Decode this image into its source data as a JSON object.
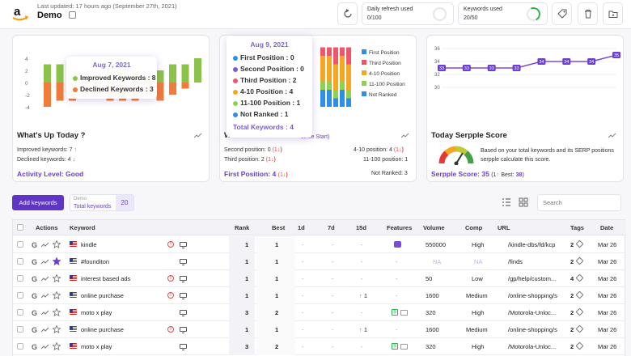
{
  "header": {
    "last_updated": "Last updated: 17 hours ago (September 27th, 2021)",
    "project_name": "Demo",
    "daily_refresh_label": "Daily refresh used",
    "daily_refresh_value": "0/100",
    "keywords_used_label": "Keywords used",
    "keywords_used_value": "20/50"
  },
  "card1": {
    "title": "What's Up Today ?",
    "improved_label": "Improved keywords:",
    "improved_value": "7",
    "declined_label": "Declined keywords:",
    "declined_value": "4",
    "activity_label": "Activity Level:",
    "activity_value": "Good",
    "tooltip": {
      "date": "Aug 7, 2021",
      "improved": "Improved Keywords : 8",
      "declined": "Declined Keywords : 3"
    },
    "y_ticks": [
      "4",
      "2",
      "0",
      "-2",
      "-4"
    ],
    "colors": {
      "improved": "#8bc34a",
      "declined": "#f07c3a"
    }
  },
  "card2": {
    "title": "W",
    "since_start": "since Start)",
    "second_label": "Second position:",
    "second_value": "0",
    "second_delta": "(1",
    "third_label": "Third position:",
    "third_value": "2",
    "third_delta": "(1",
    "p410_label": "4-10 position:",
    "p410_value": "4",
    "p410_delta": "(1",
    "p11100_label": "11-100 position:",
    "p11100_value": "1",
    "first_label": "First Position:",
    "first_value": "4",
    "first_delta": "(1",
    "not_ranked_label": "Not Ranked:",
    "not_ranked_value": "3",
    "legend": [
      "First Position",
      "Third Position",
      "4-10 Position",
      "11-100 Position",
      "Not Ranked"
    ],
    "tooltip": {
      "date": "Aug 9, 2021",
      "rows": [
        "First Position : 0",
        "Second Position : 0",
        "Third Position : 2",
        "4-10 Position : 4",
        "11-100 Position : 1",
        "Not Ranked : 1"
      ],
      "total": "Total Keywords : 4"
    },
    "colors": {
      "first": "#2e8fe6",
      "second": "#7b5cd6",
      "third": "#f0556a",
      "p410": "#f5a623",
      "p11100": "#8fd14f",
      "not_ranked": "#2e8fe6"
    }
  },
  "card3": {
    "title": "Today Serpple Score",
    "description": "Based on your total keywords and its SERP positions serpple calculate this score.",
    "score_label": "Serpple Score:",
    "score_value": "35",
    "score_delta": "(1",
    "best_label": "Best:",
    "best_value": "38",
    "chart_y_ticks": [
      "36",
      "34",
      "32",
      "30"
    ]
  },
  "chart_data": [
    {
      "type": "bar",
      "stacked": true,
      "categories": [
        "1",
        "2",
        "3",
        "4",
        "5",
        "6",
        "7",
        "8",
        "9",
        "10",
        "11",
        "12",
        "13"
      ],
      "series": [
        {
          "name": "Improved Keywords",
          "values": [
            3,
            3,
            2,
            2,
            1,
            3,
            3,
            2,
            1,
            2,
            3,
            3,
            4
          ]
        },
        {
          "name": "Declined Keywords",
          "values": [
            -4,
            -3,
            -3,
            -2,
            -2,
            -3,
            -3,
            -3,
            -2,
            -3,
            -2,
            -1,
            0
          ]
        }
      ],
      "ylim": [
        -5,
        5
      ],
      "y_ticks": [
        4,
        2,
        0,
        -2,
        -4
      ]
    },
    {
      "type": "bar",
      "stacked": true,
      "categories": [
        "1",
        "2",
        "3",
        "4",
        "5"
      ],
      "series": [
        {
          "name": "First Position",
          "values": [
            0,
            0,
            0,
            0,
            0
          ]
        },
        {
          "name": "Third Position",
          "values": [
            1,
            1,
            2,
            1,
            2
          ]
        },
        {
          "name": "4-10 Position",
          "values": [
            3,
            3,
            3,
            3,
            3
          ]
        },
        {
          "name": "11-100 Position",
          "values": [
            1,
            1,
            1,
            1,
            1
          ]
        },
        {
          "name": "Not Ranked",
          "values": [
            2,
            2,
            1,
            2,
            1
          ]
        }
      ]
    },
    {
      "type": "line",
      "x": [
        1,
        2,
        3,
        4,
        5,
        6,
        7,
        8
      ],
      "values": [
        33,
        33,
        33,
        33,
        34,
        34,
        34,
        35
      ],
      "data_labels": [
        "33",
        "33",
        "33",
        "33",
        "34",
        "34",
        "34",
        "35"
      ],
      "ylim": [
        30,
        36
      ],
      "y_ticks": [
        36,
        34,
        32,
        30
      ]
    }
  ],
  "toolbar": {
    "add_keywords": "Add keywords",
    "project_label": "Demo",
    "total_keywords_label": "Total keywords",
    "total_keywords_value": "20",
    "search_placeholder": "Search"
  },
  "table": {
    "headers": [
      "Actions",
      "Keyword",
      "Rank",
      "Best",
      "1d",
      "7d",
      "15d",
      "Features",
      "Volume",
      "Comp",
      "URL",
      "Tags",
      "Date"
    ],
    "rows": [
      {
        "keyword": "kindle",
        "rank": "1",
        "best": "1",
        "d1": "-",
        "d7": "-",
        "d15": "-",
        "volume": "550000",
        "comp": "High",
        "url": "/kindle-dbs/fd/kcp",
        "tags": "2",
        "date": "Mar 26"
      },
      {
        "keyword": "#founditon",
        "rank": "1",
        "best": "1",
        "d1": "-",
        "d7": "-",
        "d15": "-",
        "volume": "NA",
        "comp": "NA",
        "url": "/finds",
        "tags": "2",
        "date": "Mar 26"
      },
      {
        "keyword": "interest based ads",
        "rank": "1",
        "best": "1",
        "d1": "-",
        "d7": "-",
        "d15": "-",
        "volume": "50",
        "comp": "Low",
        "url": "/gp/help/custom...",
        "tags": "4",
        "date": "Mar 26"
      },
      {
        "keyword": "online purchase",
        "rank": "1",
        "best": "1",
        "d1": "-",
        "d7": "-",
        "d15": "1",
        "volume": "1600",
        "comp": "Medium",
        "url": "/online-shopping/s",
        "tags": "2",
        "date": "Mar 26"
      },
      {
        "keyword": "moto x play",
        "rank": "3",
        "best": "2",
        "d1": "-",
        "d7": "-",
        "d15": "-",
        "volume": "320",
        "comp": "High",
        "url": "/Motorola-Unloc...",
        "tags": "2",
        "date": "Mar 26"
      },
      {
        "keyword": "online purchase",
        "rank": "1",
        "best": "1",
        "d1": "-",
        "d7": "-",
        "d15": "1",
        "volume": "1600",
        "comp": "Medium",
        "url": "/online-shopping/s",
        "tags": "2",
        "date": "Mar 26"
      },
      {
        "keyword": "moto x play",
        "rank": "3",
        "best": "2",
        "d1": "-",
        "d7": "-",
        "d15": "-",
        "volume": "320",
        "comp": "High",
        "url": "/Motorola-Unloc...",
        "tags": "2",
        "date": "Mar 26"
      }
    ]
  }
}
